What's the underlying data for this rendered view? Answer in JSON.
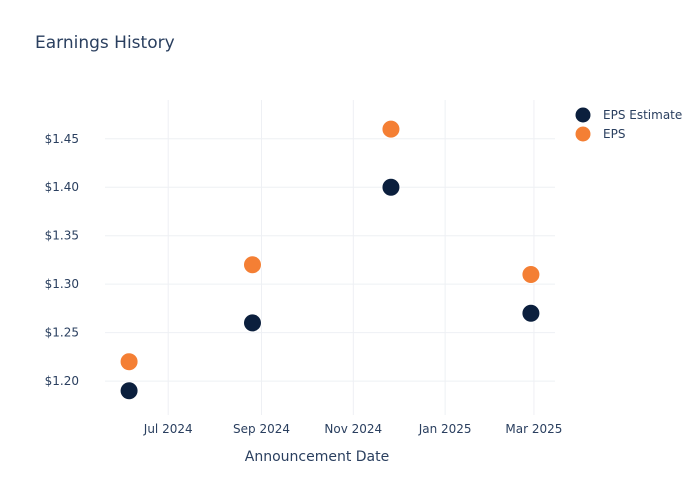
{
  "chart_data": {
    "type": "scatter",
    "title": "Earnings History",
    "xlabel": "Announcement Date",
    "ylabel": "",
    "x_ticks": [
      "2024-07-01",
      "2024-09-01",
      "2024-11-01",
      "2025-01-01",
      "2025-03-01"
    ],
    "x_tick_labels": [
      "Jul 2024",
      "Sep 2024",
      "Nov 2024",
      "Jan 2025",
      "Mar 2025"
    ],
    "xlim": [
      "2024-05-20",
      "2025-03-15"
    ],
    "y_ticks": [
      1.2,
      1.25,
      1.3,
      1.35,
      1.4,
      1.45
    ],
    "y_tick_labels": [
      "$1.20",
      "$1.25",
      "$1.30",
      "$1.35",
      "$1.40",
      "$1.45"
    ],
    "ylim": [
      1.165,
      1.49
    ],
    "grid": true,
    "legend_position": "top-right",
    "series": [
      {
        "name": "EPS Estimate",
        "color": "#0b1f3d",
        "points": [
          {
            "x": "2024-06-05",
            "y": 1.19
          },
          {
            "x": "2024-08-26",
            "y": 1.26
          },
          {
            "x": "2024-11-26",
            "y": 1.4
          },
          {
            "x": "2025-02-27",
            "y": 1.27
          }
        ]
      },
      {
        "name": "EPS",
        "color": "#f47f34",
        "points": [
          {
            "x": "2024-06-05",
            "y": 1.22
          },
          {
            "x": "2024-08-26",
            "y": 1.32
          },
          {
            "x": "2024-11-26",
            "y": 1.46
          },
          {
            "x": "2025-02-27",
            "y": 1.31
          }
        ]
      }
    ]
  }
}
